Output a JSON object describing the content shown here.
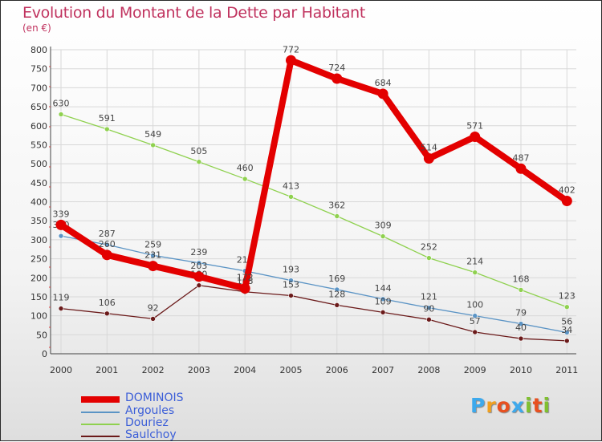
{
  "title": "Evolution du Montant de la Dette par Habitant",
  "subtitle": "(en €)",
  "logo": {
    "letters": [
      "P",
      "r",
      "o",
      "x",
      "i",
      "t",
      "i"
    ],
    "colors": [
      "#3da9ec",
      "#f0a020",
      "#e85020",
      "#3da9ec",
      "#80c030",
      "#e85020",
      "#80c030"
    ]
  },
  "chart_data": {
    "type": "line",
    "x": [
      "2000",
      "2001",
      "2002",
      "2003",
      "2004",
      "2005",
      "2006",
      "2007",
      "2008",
      "2009",
      "2010",
      "2011"
    ],
    "ylim": [
      0,
      800
    ],
    "yticks": [
      "0",
      "50",
      "100",
      "150",
      "200",
      "250",
      "300",
      "350",
      "400",
      "450",
      "500",
      "550",
      "600",
      "650",
      "700",
      "750",
      "800"
    ],
    "grid": true,
    "legend_position": "bottom-left",
    "series": [
      {
        "name": "DOMINOIS",
        "color": "#e30000",
        "values": [
          339,
          260,
          231,
          203,
          172,
          772,
          724,
          684,
          514,
          571,
          487,
          402
        ],
        "labels": [
          "339",
          "260",
          "231",
          "203",
          "172",
          "772",
          "724",
          "684",
          "514",
          "571",
          "487",
          "402"
        ]
      },
      {
        "name": "Argoules",
        "color": "#5b94c5",
        "values": [
          310,
          287,
          259,
          239,
          218,
          193,
          169,
          144,
          121,
          100,
          79,
          56
        ],
        "labels": [
          "310",
          "287",
          "259",
          "239",
          "218",
          "193",
          "169",
          "144",
          "121",
          "100",
          "79",
          "56"
        ]
      },
      {
        "name": "Douriez",
        "color": "#8fd14f",
        "values": [
          630,
          591,
          549,
          505,
          460,
          413,
          362,
          309,
          252,
          214,
          168,
          123
        ],
        "labels": [
          "630",
          "591",
          "549",
          "505",
          "460",
          "413",
          "362",
          "309",
          "252",
          "214",
          "168",
          "123"
        ]
      },
      {
        "name": "Saulchoy",
        "color": "#6b1a1a",
        "values": [
          119,
          106,
          92,
          180,
          163,
          153,
          128,
          109,
          90,
          57,
          40,
          34
        ],
        "labels": [
          "119",
          "106",
          "92",
          "180",
          "163",
          "153",
          "128",
          "109",
          "90",
          "57",
          "40",
          "34"
        ]
      }
    ]
  }
}
